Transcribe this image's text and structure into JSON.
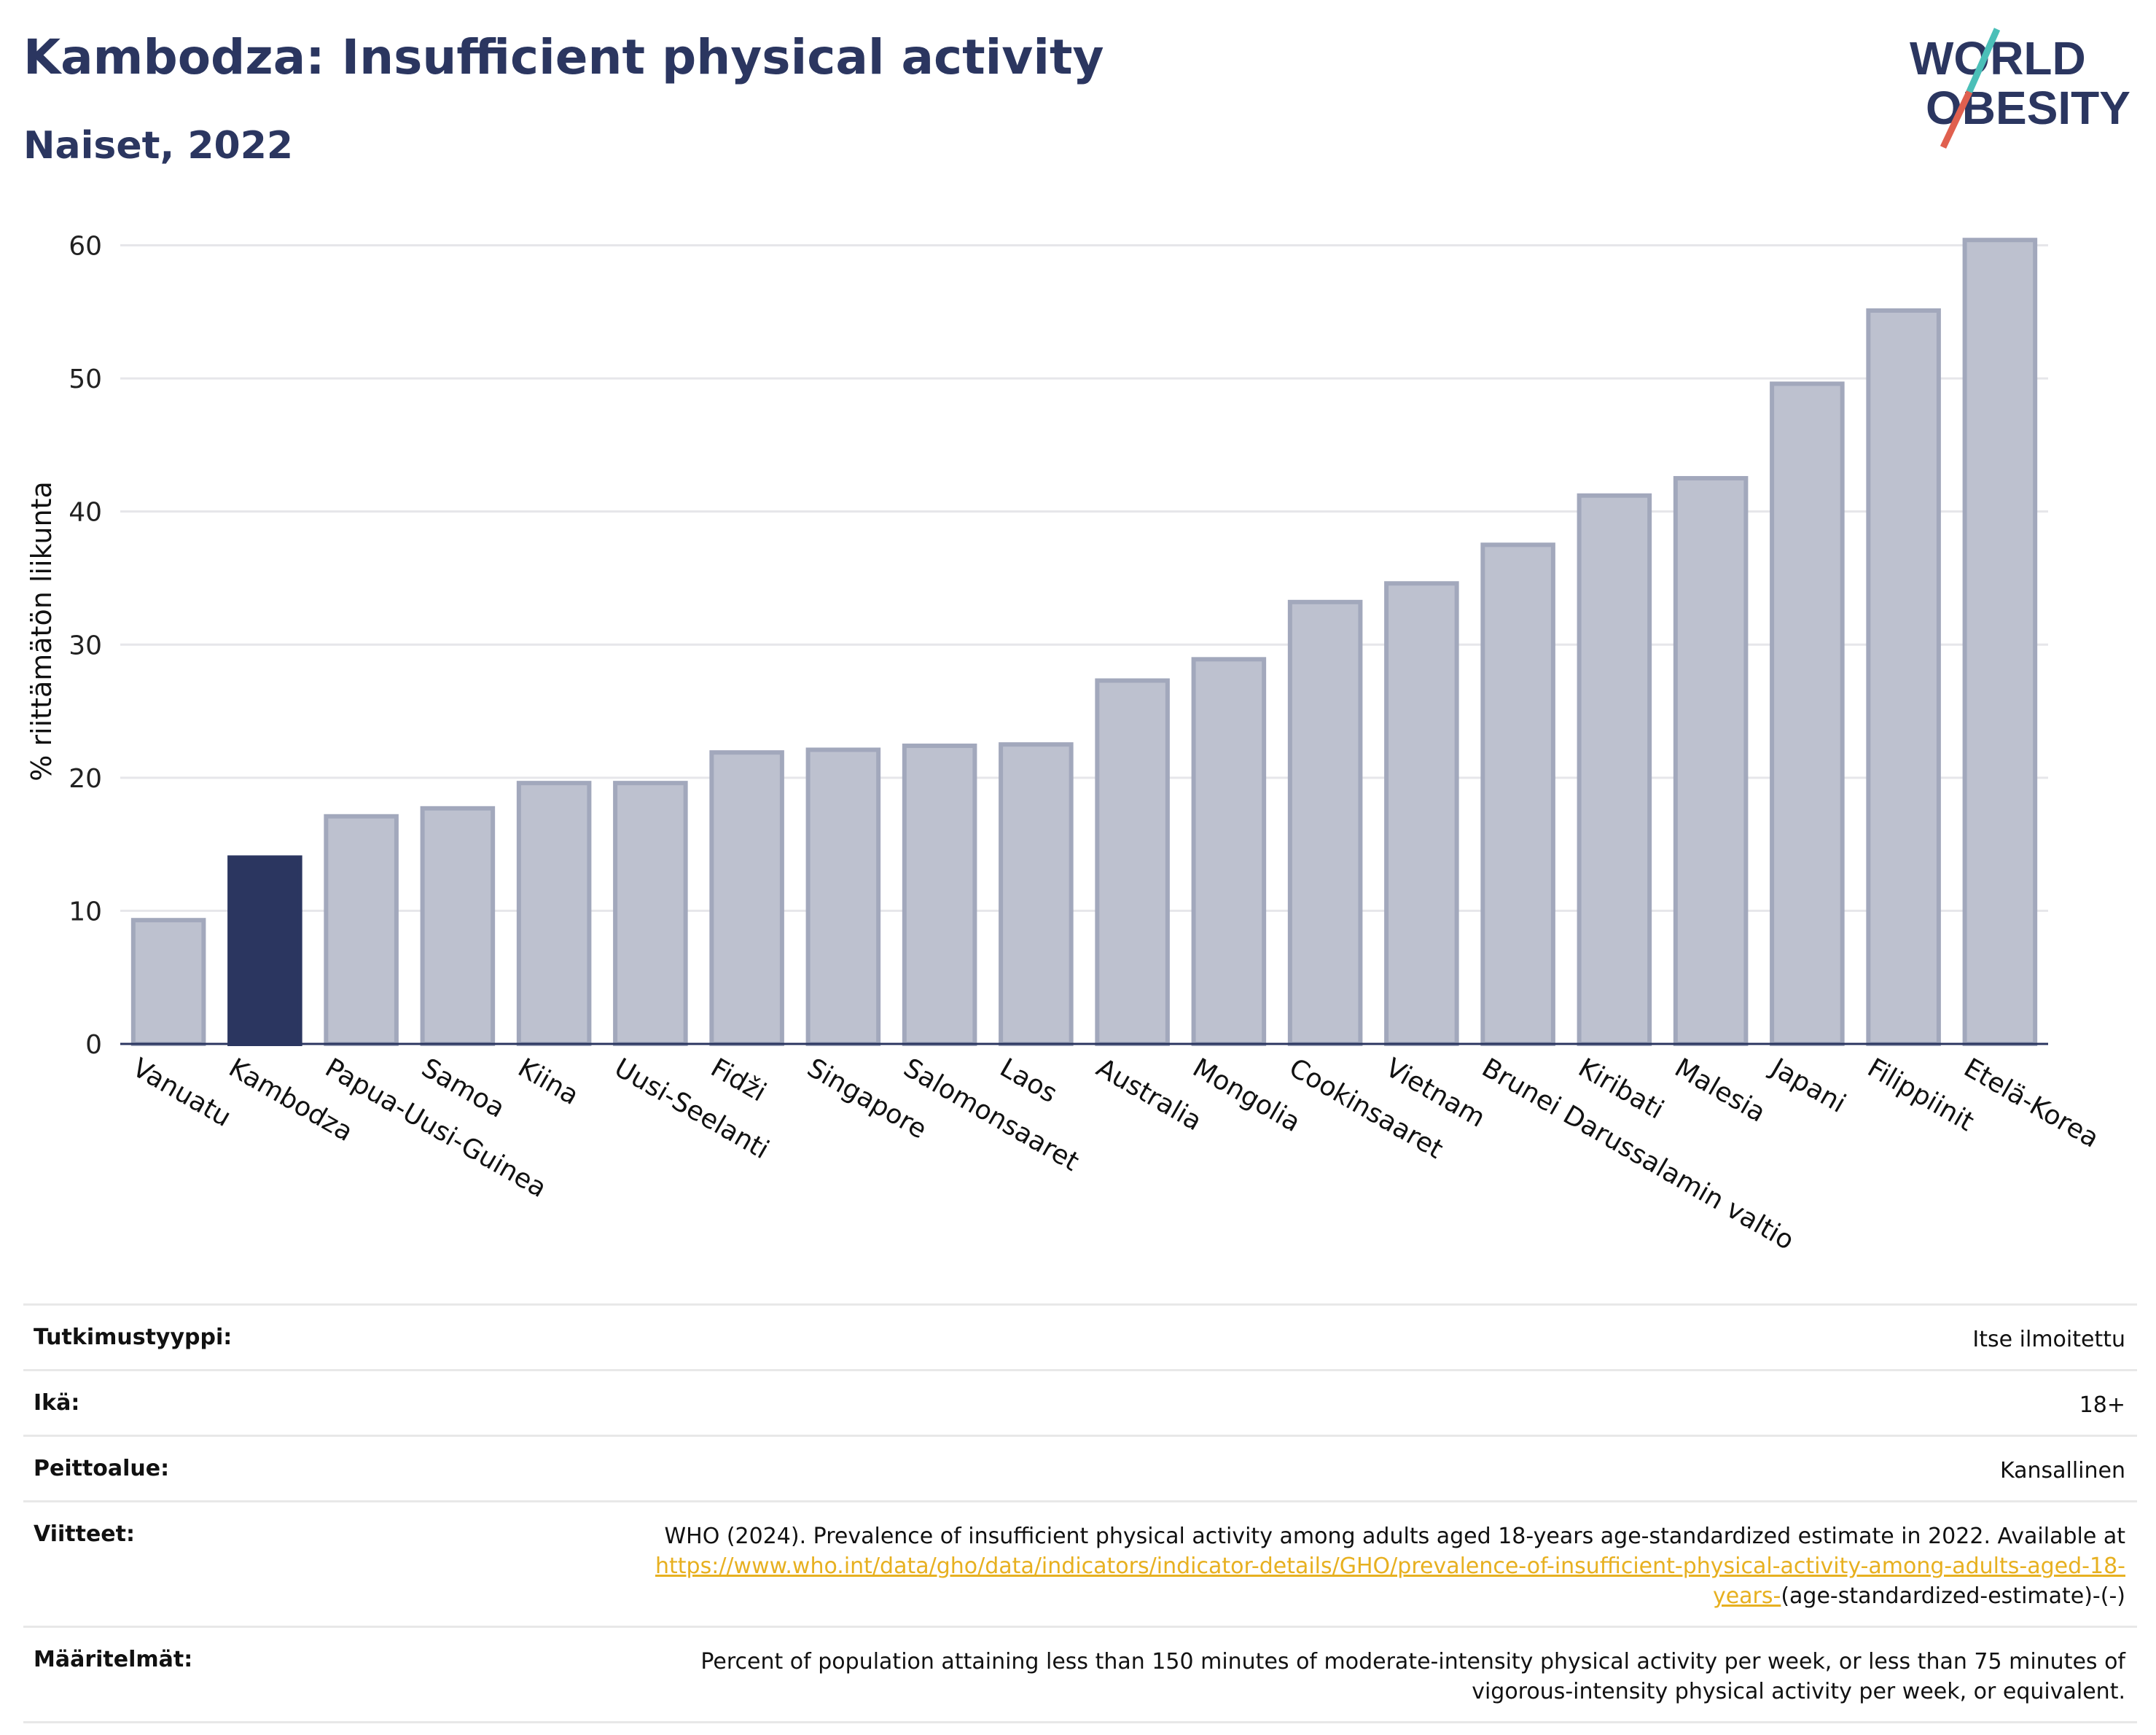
{
  "header": {
    "title": "Kambodza: Insufficient physical activity",
    "subtitle": "Naiset, 2022"
  },
  "logo": {
    "line1": "WORLD",
    "line2": "OBESITY",
    "text_color": "#2b3660",
    "accent_colors": [
      "#4bbfb8",
      "#e0604f"
    ]
  },
  "chart_data": {
    "type": "bar",
    "title": "Kambodza: Insufficient physical activity",
    "subtitle": "Naiset, 2022",
    "ylabel": "% riittämätön liikunta",
    "xlabel": "",
    "ylim": [
      0,
      62
    ],
    "yticks": [
      0,
      10,
      20,
      30,
      40,
      50,
      60
    ],
    "grid": true,
    "highlight_category": "Kambodza",
    "colors": {
      "default": "#bdc1cf",
      "default_border": "#a2a8bc",
      "highlight": "#2b3660"
    },
    "categories": [
      "Vanuatu",
      "Kambodza",
      "Papua-Uusi-Guinea",
      "Samoa",
      "Kiina",
      "Uusi-Seelanti",
      "Fidži",
      "Singapore",
      "Salomonsaaret",
      "Laos",
      "Australia",
      "Mongolia",
      "Cookinsaaret",
      "Vietnam",
      "Brunei Darussalamin valtio",
      "Kiribati",
      "Malesia",
      "Japani",
      "Filippiinit",
      "Etelä-Korea"
    ],
    "values": [
      9.3,
      14.0,
      17.1,
      17.7,
      19.6,
      19.6,
      21.9,
      22.1,
      22.4,
      22.5,
      27.3,
      28.9,
      33.2,
      34.6,
      37.5,
      41.2,
      42.5,
      49.6,
      55.1,
      60.4
    ]
  },
  "meta": {
    "rows": [
      {
        "label": "Tutkimustyyppi:",
        "value": "Itse ilmoitettu"
      },
      {
        "label": "Ikä:",
        "value": "18+"
      },
      {
        "label": "Peittoalue:",
        "value": "Kansallinen"
      }
    ],
    "references": {
      "label": "Viitteet:",
      "text_before": "WHO (2024). Prevalence of insufficient physical activity among adults aged 18-years age-standardized estimate in 2022. Available at ",
      "link": "https://www.who.int/data/gho/data/indicators/indicator-details/GHO/prevalence-of-insufficient-physical-activity-among-adults-aged-18-years-",
      "text_after": "(age-standardized-estimate)-(-)"
    },
    "definitions": {
      "label": "Määritelmät:",
      "value": "Percent of population attaining less than 150 minutes of moderate-intensity physical activity per week, or less than 75 minutes of vigorous-intensity physical activity per week, or equivalent."
    }
  }
}
